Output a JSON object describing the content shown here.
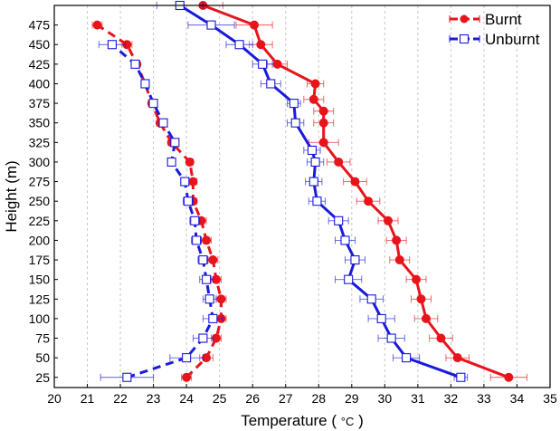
{
  "chart_data": {
    "type": "line",
    "xlabel": "Temperature",
    "xunit": "°C",
    "ylabel": "Height (m)",
    "xlim": [
      20,
      35
    ],
    "ylim": [
      12,
      500
    ],
    "xticks": [
      20,
      21,
      22,
      23,
      24,
      25,
      26,
      27,
      28,
      29,
      30,
      31,
      32,
      33,
      34,
      35
    ],
    "yticks": [
      25,
      50,
      75,
      100,
      125,
      150,
      175,
      200,
      225,
      250,
      275,
      300,
      325,
      350,
      375,
      400,
      425,
      450,
      475
    ],
    "grid": "vertical dashed",
    "legend_position": "top-right",
    "series": [
      {
        "name": "Burnt",
        "color": "#e8141b",
        "marker": "filled-circle",
        "points": [
          {
            "x": 24.0,
            "y": 25,
            "err": 0.15
          },
          {
            "x": 24.6,
            "y": 50,
            "err": 0.2
          },
          {
            "x": 24.9,
            "y": 75,
            "err": 0.15
          },
          {
            "x": 25.05,
            "y": 100,
            "err": 0.15
          },
          {
            "x": 25.05,
            "y": 125,
            "err": 0.15
          },
          {
            "x": 24.9,
            "y": 150,
            "err": 0.15
          },
          {
            "x": 24.8,
            "y": 175,
            "err": 0.15
          },
          {
            "x": 24.6,
            "y": 200,
            "err": 0.15
          },
          {
            "x": 24.45,
            "y": 225,
            "err": 0.15
          },
          {
            "x": 24.2,
            "y": 250,
            "err": 0.12
          },
          {
            "x": 24.2,
            "y": 275,
            "err": 0.12
          },
          {
            "x": 24.1,
            "y": 300,
            "err": 0.1
          },
          {
            "x": 23.55,
            "y": 325,
            "err": 0.1
          },
          {
            "x": 23.2,
            "y": 350,
            "err": 0.1
          },
          {
            "x": 22.95,
            "y": 375,
            "err": 0.1
          },
          {
            "x": 22.75,
            "y": 400,
            "err": 0.1
          },
          {
            "x": 22.5,
            "y": 425,
            "err": 0.1
          },
          {
            "x": 22.2,
            "y": 450,
            "err": 0.15
          },
          {
            "x": 21.3,
            "y": 475,
            "err": 0.15
          },
          {
            "x": 33.75,
            "y": 25,
            "err": 0.55
          },
          {
            "x": 32.2,
            "y": 50,
            "err": 0.35
          },
          {
            "x": 31.7,
            "y": 75,
            "err": 0.35
          },
          {
            "x": 31.25,
            "y": 100,
            "err": 0.35
          },
          {
            "x": 31.1,
            "y": 125,
            "err": 0.3
          },
          {
            "x": 30.95,
            "y": 150,
            "err": 0.3
          },
          {
            "x": 30.45,
            "y": 175,
            "err": 0.3
          },
          {
            "x": 30.35,
            "y": 200,
            "err": 0.3
          },
          {
            "x": 30.1,
            "y": 225,
            "err": 0.3
          },
          {
            "x": 29.5,
            "y": 250,
            "err": 0.35
          },
          {
            "x": 29.1,
            "y": 275,
            "err": 0.35
          },
          {
            "x": 28.6,
            "y": 300,
            "err": 0.35
          },
          {
            "x": 28.15,
            "y": 325,
            "err": 0.45
          },
          {
            "x": 28.15,
            "y": 350,
            "err": 0.3
          },
          {
            "x": 28.15,
            "y": 365,
            "err": 0.3
          },
          {
            "x": 27.85,
            "y": 380,
            "err": 0.3
          },
          {
            "x": 27.9,
            "y": 400,
            "err": 0.25
          },
          {
            "x": 26.75,
            "y": 425,
            "err": 0.3
          },
          {
            "x": 26.25,
            "y": 450,
            "err": 0.35
          },
          {
            "x": 26.05,
            "y": 475,
            "err": 0.55
          },
          {
            "x": 24.5,
            "y": 500,
            "err": 0.6
          }
        ],
        "segments": [
          {
            "style": "dashed",
            "from": 0,
            "to": 18
          },
          {
            "style": "solid",
            "from": 19,
            "to": 39
          }
        ]
      },
      {
        "name": "Unburnt",
        "color": "#1a1adb",
        "marker": "open-square",
        "points": [
          {
            "x": 22.2,
            "y": 25,
            "err": 0.8
          },
          {
            "x": 24.0,
            "y": 50,
            "err": 0.5
          },
          {
            "x": 24.5,
            "y": 75,
            "err": 0.3
          },
          {
            "x": 24.8,
            "y": 100,
            "err": 0.3
          },
          {
            "x": 24.7,
            "y": 125,
            "err": 0.2
          },
          {
            "x": 24.6,
            "y": 150,
            "err": 0.2
          },
          {
            "x": 24.5,
            "y": 175,
            "err": 0.15
          },
          {
            "x": 24.3,
            "y": 200,
            "err": 0.15
          },
          {
            "x": 24.25,
            "y": 225,
            "err": 0.15
          },
          {
            "x": 24.05,
            "y": 250,
            "err": 0.15
          },
          {
            "x": 23.95,
            "y": 275,
            "err": 0.12
          },
          {
            "x": 23.55,
            "y": 300,
            "err": 0.1
          },
          {
            "x": 23.65,
            "y": 325,
            "err": 0.1
          },
          {
            "x": 23.3,
            "y": 350,
            "err": 0.1
          },
          {
            "x": 23.0,
            "y": 375,
            "err": 0.1
          },
          {
            "x": 22.75,
            "y": 400,
            "err": 0.1
          },
          {
            "x": 22.45,
            "y": 425,
            "err": 0.1
          },
          {
            "x": 21.75,
            "y": 450,
            "err": 0.4
          },
          {
            "x": 32.3,
            "y": 25,
            "err": 0.2
          },
          {
            "x": 30.65,
            "y": 50,
            "err": 0.4
          },
          {
            "x": 30.2,
            "y": 75,
            "err": 0.4
          },
          {
            "x": 29.9,
            "y": 100,
            "err": 0.4
          },
          {
            "x": 29.6,
            "y": 125,
            "err": 0.35
          },
          {
            "x": 28.9,
            "y": 150,
            "err": 0.4
          },
          {
            "x": 29.1,
            "y": 175,
            "err": 0.3
          },
          {
            "x": 28.8,
            "y": 200,
            "err": 0.3
          },
          {
            "x": 28.6,
            "y": 225,
            "err": 0.3
          },
          {
            "x": 27.95,
            "y": 250,
            "err": 0.25
          },
          {
            "x": 27.85,
            "y": 275,
            "err": 0.25
          },
          {
            "x": 27.9,
            "y": 300,
            "err": 0.25
          },
          {
            "x": 27.8,
            "y": 315,
            "err": 0.25
          },
          {
            "x": 27.3,
            "y": 350,
            "err": 0.25
          },
          {
            "x": 27.25,
            "y": 375,
            "err": 0.2
          },
          {
            "x": 26.55,
            "y": 400,
            "err": 0.3
          },
          {
            "x": 26.3,
            "y": 425,
            "err": 0.3
          },
          {
            "x": 25.6,
            "y": 450,
            "err": 0.4
          },
          {
            "x": 24.75,
            "y": 475,
            "err": 0.7
          },
          {
            "x": 23.8,
            "y": 500,
            "err": 0.7
          }
        ],
        "segments": [
          {
            "style": "dashed",
            "from": 0,
            "to": 17
          },
          {
            "style": "solid",
            "from": 18,
            "to": 37
          }
        ]
      }
    ]
  }
}
